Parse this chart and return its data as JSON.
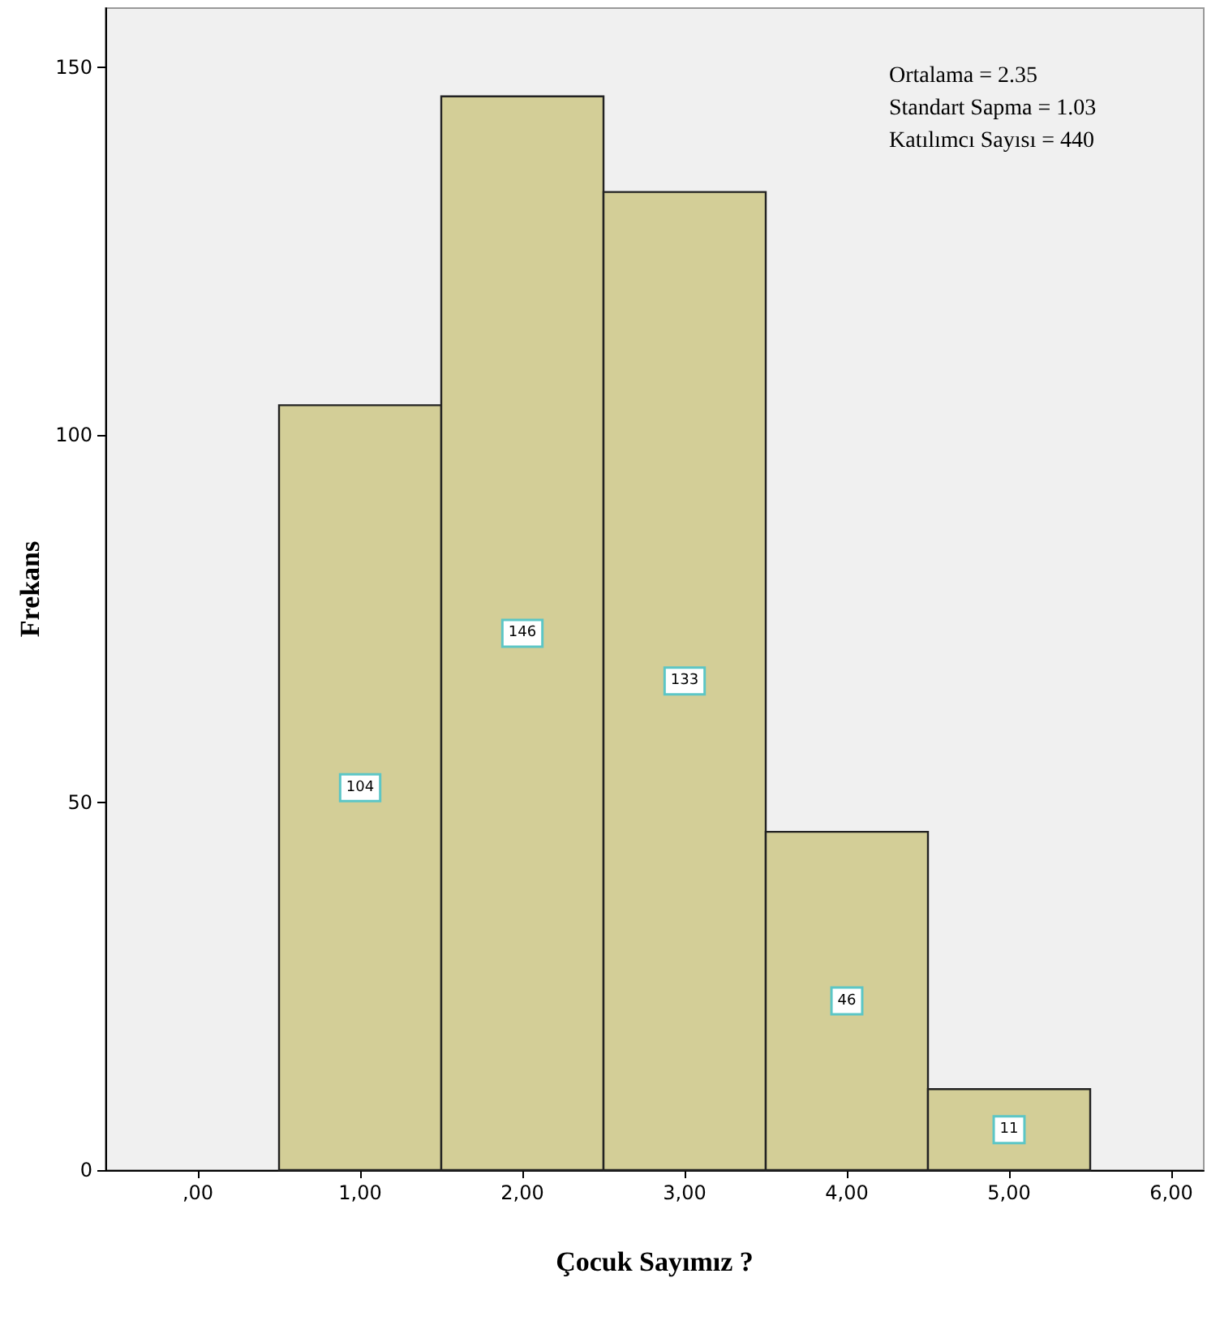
{
  "chart_data": {
    "type": "histogram",
    "xlabel": "Çocuk Sayımız ?",
    "ylabel": "Frekans",
    "bins": [
      0.5,
      1.5,
      2.5,
      3.5,
      4.5,
      5.5
    ],
    "values": [
      104,
      146,
      133,
      46,
      11
    ],
    "color": "#d3ce97",
    "data_labels": true,
    "xlim": [
      -0.57,
      6.2
    ],
    "xticks": [
      {
        "value": 0,
        "label": ",00"
      },
      {
        "value": 1,
        "label": "1,00"
      },
      {
        "value": 2,
        "label": "2,00"
      },
      {
        "value": 3,
        "label": "3,00"
      },
      {
        "value": 4,
        "label": "4,00"
      },
      {
        "value": 5,
        "label": "5,00"
      },
      {
        "value": 6,
        "label": "6,00"
      }
    ],
    "ylim": [
      0,
      158
    ],
    "yticks": [
      0,
      50,
      100,
      150
    ],
    "grid": false,
    "annotations": [
      "Ortalama = 2.35",
      "Standart Sapma = 1.03",
      "Katılımcı Sayısı = 440"
    ]
  }
}
